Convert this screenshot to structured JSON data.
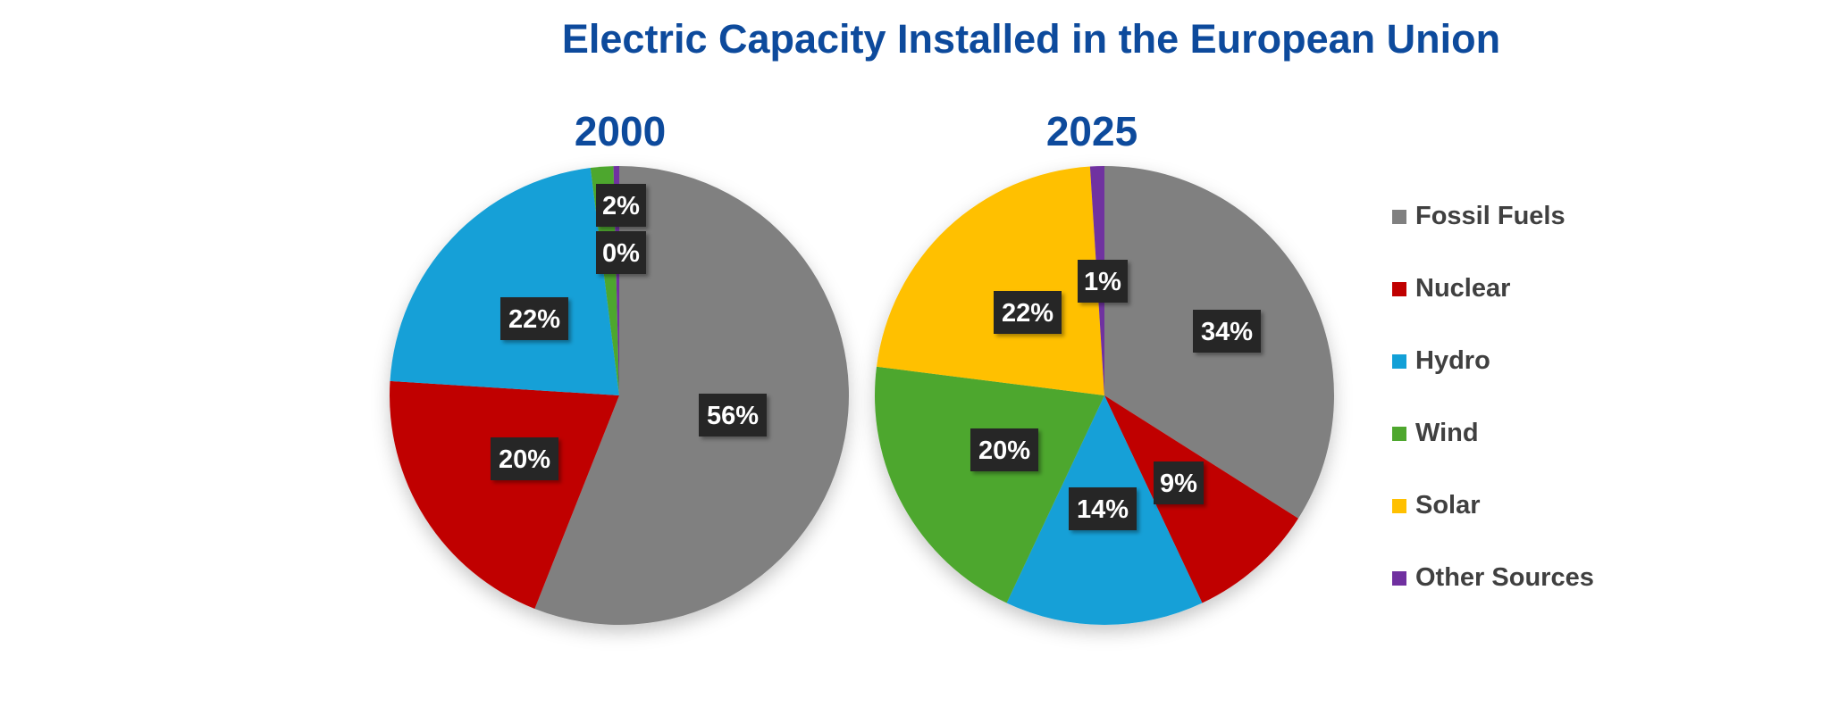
{
  "title": "Electric Capacity Installed in the European Union",
  "chart_data": {
    "type": "pie",
    "title": "Electric Capacity Installed in the European Union",
    "legend": {
      "placement": "right"
    },
    "categories": [
      "Fossil Fuels",
      "Nuclear",
      "Hydro",
      "Wind",
      "Solar",
      "Other Sources"
    ],
    "colors": {
      "Fossil Fuels": "#808080",
      "Nuclear": "#c00000",
      "Hydro": "#12a0d7",
      "Wind": "#4ea72e",
      "Solar": "#ffc000",
      "Other Sources": "#7030a0"
    },
    "pies": [
      {
        "title": "2000",
        "slices": [
          {
            "category": "Fossil Fuels",
            "value": 56,
            "label": "56%"
          },
          {
            "category": "Nuclear",
            "value": 20,
            "label": "20%"
          },
          {
            "category": "Hydro",
            "value": 22,
            "label": "22%"
          },
          {
            "category": "Wind",
            "value": 1.6,
            "label": "2%"
          },
          {
            "category": "Solar",
            "value": 0,
            "label": "0%"
          },
          {
            "category": "Other Sources",
            "value": 0.4,
            "label": ""
          }
        ]
      },
      {
        "title": "2025",
        "slices": [
          {
            "category": "Fossil Fuels",
            "value": 34,
            "label": "34%"
          },
          {
            "category": "Nuclear",
            "value": 9,
            "label": "9%"
          },
          {
            "category": "Hydro",
            "value": 14,
            "label": "14%"
          },
          {
            "category": "Wind",
            "value": 20,
            "label": "20%"
          },
          {
            "category": "Solar",
            "value": 22,
            "label": "22%"
          },
          {
            "category": "Other Sources",
            "value": 1,
            "label": "1%"
          }
        ]
      }
    ]
  }
}
